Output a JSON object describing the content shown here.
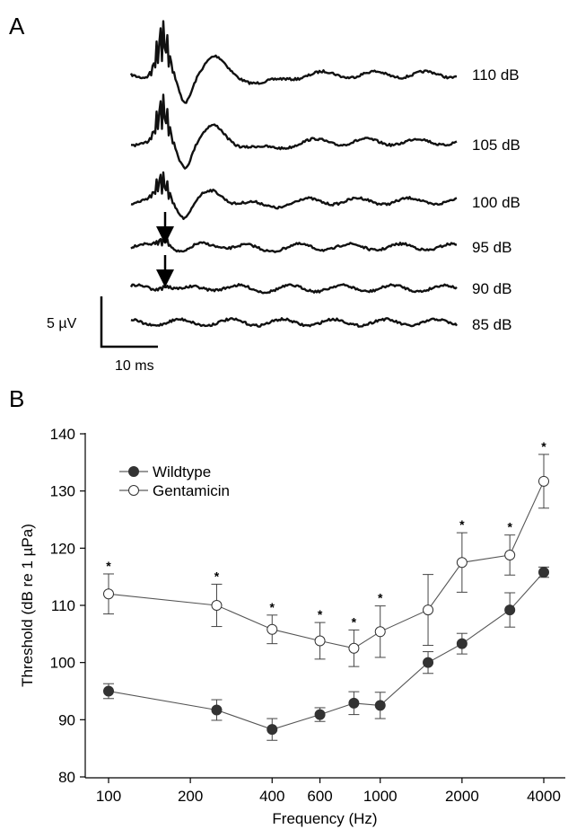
{
  "panel_a": {
    "label": "A",
    "traces": [
      {
        "label": "110 dB"
      },
      {
        "label": "105 dB"
      },
      {
        "label": "100 dB"
      },
      {
        "label": "95 dB"
      },
      {
        "label": "90 dB"
      },
      {
        "label": "85 dB"
      }
    ],
    "scale_bar": {
      "amplitude_label": "5 µV",
      "time_label": "10 ms"
    }
  },
  "panel_b": {
    "label": "B"
  },
  "chart_data": {
    "type": "line",
    "xlabel": "Frequency (Hz)",
    "ylabel": "Threshold (dB re 1 µPa)",
    "x_scale": "log",
    "x_ticks": [
      100,
      200,
      400,
      600,
      1000,
      2000,
      4000
    ],
    "ylim": [
      80,
      140
    ],
    "y_ticks": [
      80,
      90,
      100,
      110,
      120,
      130,
      140
    ],
    "x": [
      100,
      250,
      400,
      600,
      800,
      1000,
      1500,
      2000,
      3000,
      4000
    ],
    "legend_position": "top-left",
    "series": [
      {
        "name": "Wildtype",
        "marker": "filled-circle",
        "values": [
          95.0,
          91.7,
          88.3,
          90.9,
          92.9,
          92.5,
          100.0,
          103.3,
          109.2,
          115.8
        ],
        "error": [
          1.3,
          1.8,
          1.9,
          1.2,
          2.0,
          2.3,
          1.9,
          1.8,
          3.0,
          0.9
        ]
      },
      {
        "name": "Gentamicin",
        "marker": "open-circle",
        "values": [
          112.0,
          110.0,
          105.8,
          103.8,
          102.5,
          105.4,
          109.2,
          117.5,
          118.8,
          131.7
        ],
        "error": [
          3.5,
          3.7,
          2.5,
          3.2,
          3.2,
          4.5,
          6.2,
          5.2,
          3.5,
          4.7
        ],
        "significant": [
          true,
          true,
          true,
          true,
          true,
          true,
          false,
          true,
          true,
          true
        ]
      }
    ]
  }
}
